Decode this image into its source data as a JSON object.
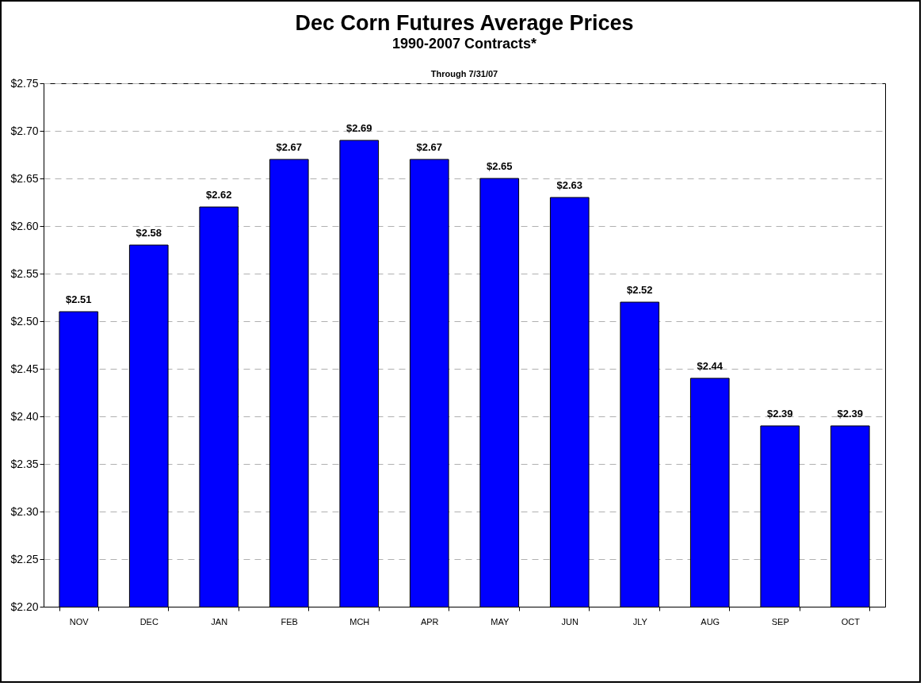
{
  "chart_data": {
    "type": "bar",
    "title": "Dec Corn Futures Average Prices",
    "subtitle": "1990-2007 Contracts*",
    "annotations": [
      "Through 7/31/07"
    ],
    "categories": [
      "NOV",
      "DEC",
      "JAN",
      "FEB",
      "MCH",
      "APR",
      "MAY",
      "JUN",
      "JLY",
      "AUG",
      "SEP",
      "OCT"
    ],
    "values": [
      2.51,
      2.58,
      2.62,
      2.67,
      2.69,
      2.67,
      2.65,
      2.63,
      2.52,
      2.44,
      2.39,
      2.39
    ],
    "value_labels": [
      "$2.51",
      "$2.58",
      "$2.62",
      "$2.67",
      "$2.69",
      "$2.67",
      "$2.65",
      "$2.63",
      "$2.52",
      "$2.44",
      "$2.39",
      "$2.39"
    ],
    "color": "#0000ff",
    "ylim": [
      2.2,
      2.75
    ],
    "yticks": [
      {
        "value": 2.2,
        "label": "$2.20"
      },
      {
        "value": 2.25,
        "label": "$2.25"
      },
      {
        "value": 2.3,
        "label": "$2.30"
      },
      {
        "value": 2.35,
        "label": "$2.35"
      },
      {
        "value": 2.4,
        "label": "$2.40"
      },
      {
        "value": 2.45,
        "label": "$2.45"
      },
      {
        "value": 2.5,
        "label": "$2.50"
      },
      {
        "value": 2.55,
        "label": "$2.55"
      },
      {
        "value": 2.6,
        "label": "$2.60"
      },
      {
        "value": 2.65,
        "label": "$2.65"
      },
      {
        "value": 2.7,
        "label": "$2.70"
      },
      {
        "value": 2.75,
        "label": "$2.75"
      }
    ],
    "grid": "y",
    "line_style": "dashed"
  }
}
